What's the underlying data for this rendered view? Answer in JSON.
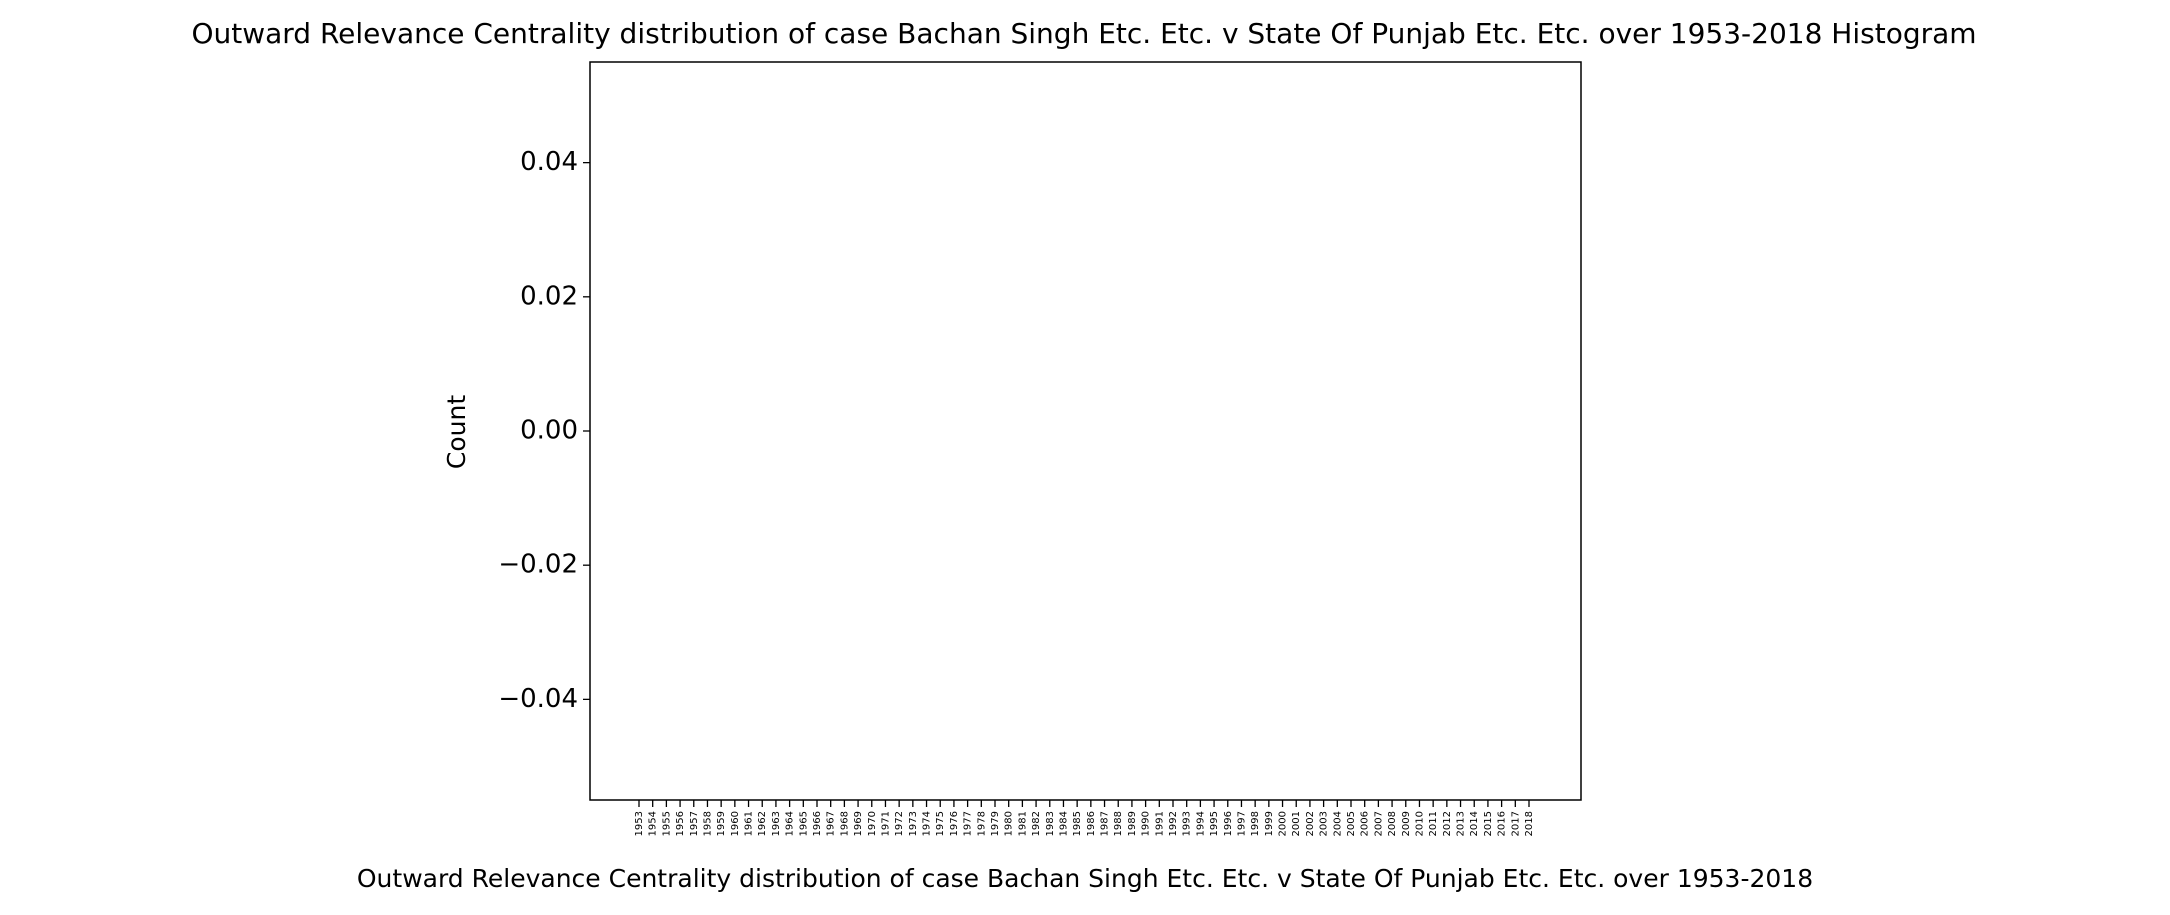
{
  "chart_data": {
    "type": "bar",
    "title": "Outward Relevance Centrality distribution of case Bachan Singh Etc. Etc. v State Of Punjab Etc. Etc. over 1953-2018 Histogram",
    "xlabel": "Outward Relevance Centrality distribution of case Bachan Singh Etc. Etc. v State Of Punjab Etc. Etc. over 1953-2018",
    "ylabel": "Count",
    "categories": [
      "1953",
      "1954",
      "1955",
      "1956",
      "1957",
      "1958",
      "1959",
      "1960",
      "1961",
      "1962",
      "1963",
      "1964",
      "1965",
      "1966",
      "1967",
      "1968",
      "1969",
      "1970",
      "1971",
      "1972",
      "1973",
      "1974",
      "1975",
      "1976",
      "1977",
      "1978",
      "1979",
      "1980",
      "1981",
      "1982",
      "1983",
      "1984",
      "1985",
      "1986",
      "1987",
      "1988",
      "1989",
      "1990",
      "1991",
      "1992",
      "1993",
      "1994",
      "1995",
      "1996",
      "1997",
      "1998",
      "1999",
      "2000",
      "2001",
      "2002",
      "2003",
      "2004",
      "2005",
      "2006",
      "2007",
      "2008",
      "2009",
      "2010",
      "2011",
      "2012",
      "2013",
      "2014",
      "2015",
      "2016",
      "2017",
      "2018"
    ],
    "values": [
      0,
      0,
      0,
      0,
      0,
      0,
      0,
      0,
      0,
      0,
      0,
      0,
      0,
      0,
      0,
      0,
      0,
      0,
      0,
      0,
      0,
      0,
      0,
      0,
      0,
      0,
      0,
      0,
      0,
      0,
      0,
      0,
      0,
      0,
      0,
      0,
      0,
      0,
      0,
      0,
      0,
      0,
      0,
      0,
      0,
      0,
      0,
      0,
      0,
      0,
      0,
      0,
      0,
      0,
      0,
      0,
      0,
      0,
      0,
      0,
      0,
      0,
      0,
      0,
      0,
      0
    ],
    "color": "#1f77b4",
    "ylim": [
      -0.055,
      0.055
    ],
    "yticks": [
      {
        "value": -0.04,
        "label": "−0.04"
      },
      {
        "value": -0.02,
        "label": "−0.02"
      },
      {
        "value": 0,
        "label": "0.00"
      },
      0.02,
      0.04
    ],
    "grid": false
  }
}
